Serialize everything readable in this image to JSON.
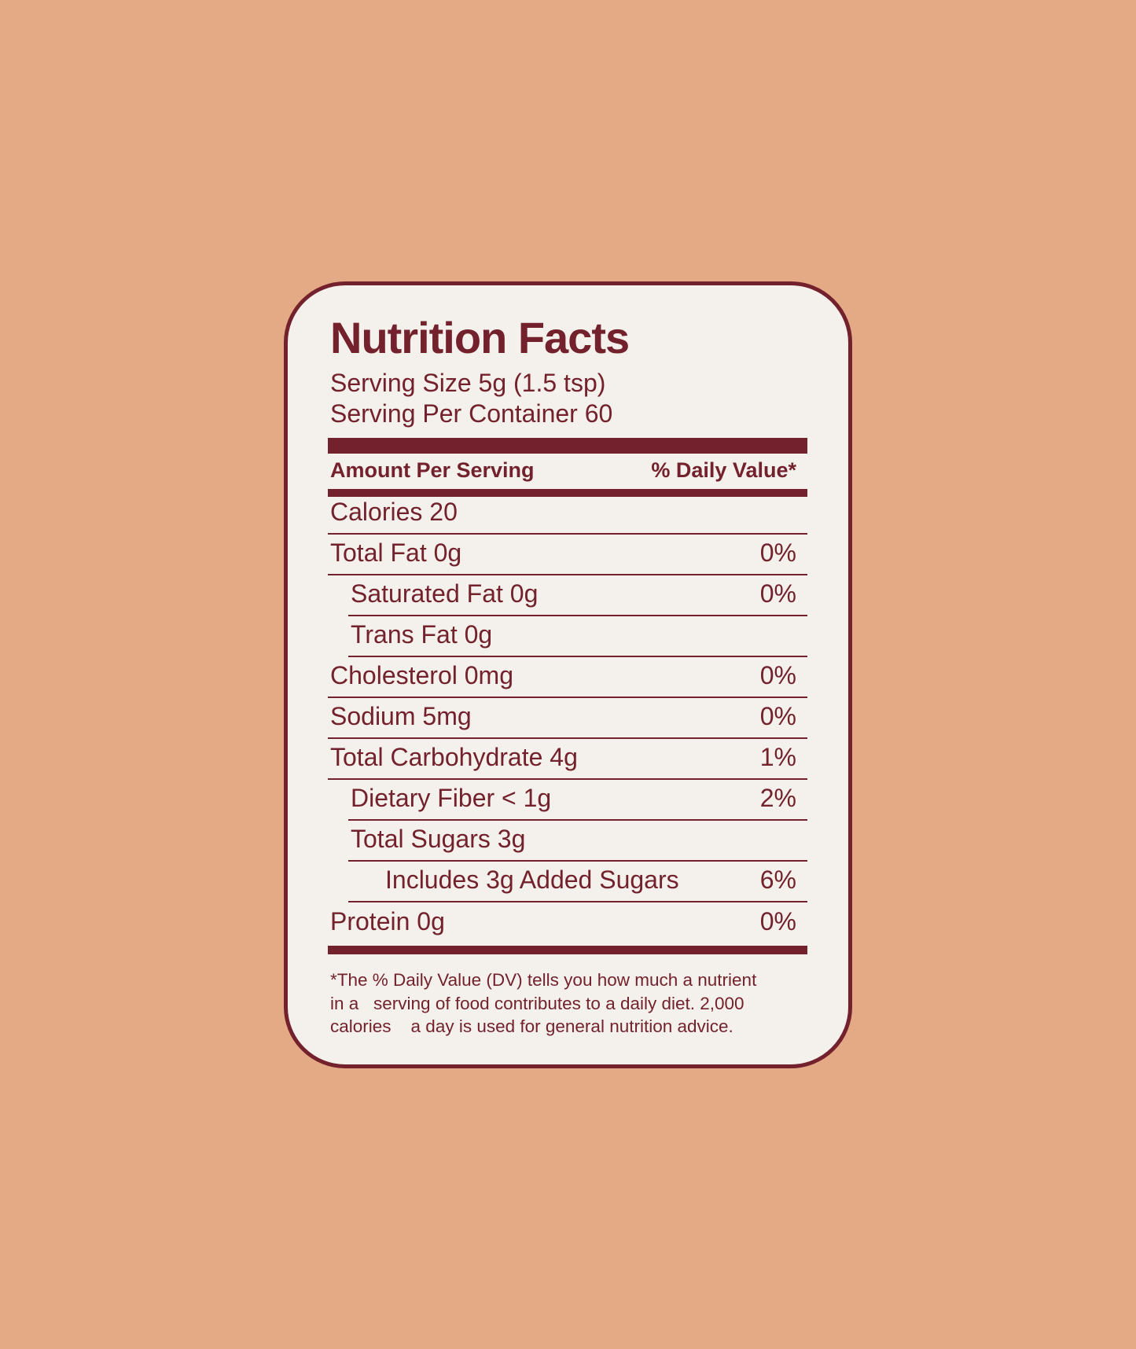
{
  "colors": {
    "background": "#E4AA86",
    "card": "#F4F0EB",
    "accent": "#73222D"
  },
  "label": {
    "title": "Nutrition Facts",
    "serving_size": "Serving Size 5g (1.5 tsp)",
    "servings_per_container": "Serving Per Container 60",
    "amount_header": "Amount Per Serving",
    "dv_header": "% Daily Value*",
    "rows": [
      {
        "label": "Calories 20",
        "dv": ""
      },
      {
        "label": "Total Fat 0g",
        "dv": "0%"
      },
      {
        "label": "Saturated Fat 0g",
        "dv": "0%"
      },
      {
        "label": "Trans Fat 0g",
        "dv": ""
      },
      {
        "label": "Cholesterol 0mg",
        "dv": "0%"
      },
      {
        "label": "Sodium 5mg",
        "dv": "0%"
      },
      {
        "label": "Total Carbohydrate 4g",
        "dv": "1%"
      },
      {
        "label": "Dietary Fiber < 1g",
        "dv": "2%"
      },
      {
        "label": "Total Sugars 3g",
        "dv": ""
      },
      {
        "label": "Includes 3g Added Sugars",
        "dv": "6%"
      },
      {
        "label": "Protein 0g",
        "dv": "0%"
      }
    ],
    "footnote": "*The % Daily Value (DV) tells you how much a nutrient\nin a   serving of food contributes to a daily diet. 2,000\ncalories    a day is used for general nutrition advice."
  }
}
